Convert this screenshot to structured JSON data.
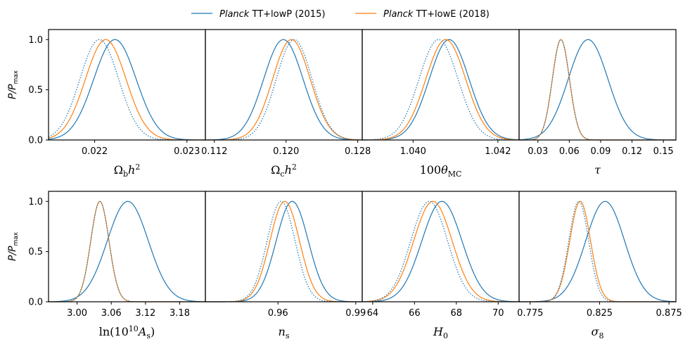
{
  "legend": [
    {
      "italic": "Planck",
      "rest": " TT+lowP (2015)",
      "color": "#1f77b4"
    },
    {
      "italic": "Planck",
      "rest": " TT+lowE (2018)",
      "color": "#ff7f0e"
    }
  ],
  "ylabel": "P/P_max",
  "colors": {
    "s2015": "#1f77b4",
    "s2018": "#ff7f0e",
    "dotted": "#1f77b4",
    "axis": "#000000"
  },
  "chart_data": [
    {
      "type": "line",
      "xlabel": "Ω_b h²",
      "xlim": [
        0.0215,
        0.0232
      ],
      "ylim": [
        0,
        1.1
      ],
      "xticks": [
        0.022,
        0.023
      ],
      "xtick_labels": [
        "0.022",
        "0.023"
      ],
      "yticks": [
        0,
        0.5,
        1.0
      ],
      "ytick_labels": [
        "0.0",
        "0.5",
        "1.0"
      ],
      "series": [
        {
          "name": "Planck TT+lowP (2015)",
          "mean": 0.02222,
          "sigma": 0.00023,
          "style": "solid",
          "color": "#1f77b4"
        },
        {
          "name": "Planck TT+lowE (2018)",
          "mean": 0.02212,
          "sigma": 0.00022,
          "style": "solid",
          "color": "#ff7f0e"
        },
        {
          "mean": 0.02205,
          "sigma": 0.00021,
          "style": "dotted",
          "color": "#1f77b4"
        }
      ]
    },
    {
      "type": "line",
      "xlabel": "Ω_c h²",
      "xlim": [
        0.111,
        0.1285
      ],
      "ylim": [
        0,
        1.1
      ],
      "xticks": [
        0.112,
        0.12,
        0.128
      ],
      "xtick_labels": [
        "0.112",
        "0.120",
        "0.128"
      ],
      "series": [
        {
          "name": "Planck TT+lowP (2015)",
          "mean": 0.1197,
          "sigma": 0.0022,
          "style": "solid",
          "color": "#1f77b4"
        },
        {
          "name": "Planck TT+lowE (2018)",
          "mean": 0.1206,
          "sigma": 0.0021,
          "style": "solid",
          "color": "#ff7f0e"
        },
        {
          "mean": 0.1209,
          "sigma": 0.002,
          "style": "dotted",
          "color": "#1f77b4"
        }
      ]
    },
    {
      "type": "line",
      "xlabel": "100θ_MC",
      "xlim": [
        1.0388,
        1.0425
      ],
      "ylim": [
        0,
        1.1
      ],
      "xticks": [
        1.04,
        1.042
      ],
      "xtick_labels": [
        "1.040",
        "1.042"
      ],
      "series": [
        {
          "name": "Planck TT+lowP (2015)",
          "mean": 1.04085,
          "sigma": 0.00047,
          "style": "solid",
          "color": "#1f77b4"
        },
        {
          "name": "Planck TT+lowE (2018)",
          "mean": 1.04077,
          "sigma": 0.00047,
          "style": "solid",
          "color": "#ff7f0e"
        },
        {
          "mean": 1.0406,
          "sigma": 0.00046,
          "style": "dotted",
          "color": "#1f77b4"
        }
      ]
    },
    {
      "type": "line",
      "xlabel": "τ",
      "xlim": [
        0.012,
        0.162
      ],
      "ylim": [
        0,
        1.1
      ],
      "xticks": [
        0.03,
        0.06,
        0.09,
        0.12,
        0.15
      ],
      "xtick_labels": [
        "0.03",
        "0.06",
        "0.09",
        "0.12",
        "0.15"
      ],
      "series": [
        {
          "name": "Planck TT+lowP (2015)",
          "mean": 0.078,
          "sigma": 0.019,
          "style": "solid",
          "color": "#1f77b4"
        },
        {
          "name": "Planck TT+lowE (2018)",
          "mean": 0.052,
          "sigma": 0.0082,
          "style": "solid",
          "color": "#ff7f0e"
        },
        {
          "mean": 0.052,
          "sigma": 0.0082,
          "style": "dotted",
          "color": "#1f77b4"
        }
      ]
    },
    {
      "type": "line",
      "xlabel": "ln(10¹⁰A_s)",
      "xlim": [
        2.95,
        3.225
      ],
      "ylim": [
        0,
        1.1
      ],
      "xticks": [
        3.0,
        3.06,
        3.12,
        3.18
      ],
      "xtick_labels": [
        "3.00",
        "3.06",
        "3.12",
        "3.18"
      ],
      "series": [
        {
          "name": "Planck TT+lowP (2015)",
          "mean": 3.089,
          "sigma": 0.036,
          "style": "solid",
          "color": "#1f77b4"
        },
        {
          "name": "Planck TT+lowE (2018)",
          "mean": 3.04,
          "sigma": 0.016,
          "style": "solid",
          "color": "#ff7f0e"
        },
        {
          "mean": 3.04,
          "sigma": 0.016,
          "style": "dotted",
          "color": "#1f77b4"
        }
      ]
    },
    {
      "type": "line",
      "xlabel": "n_s",
      "xlim": [
        0.932,
        0.9925
      ],
      "ylim": [
        0,
        1.1
      ],
      "xticks": [
        0.96,
        0.99
      ],
      "xtick_labels": [
        "0.96",
        "0.99"
      ],
      "series": [
        {
          "name": "Planck TT+lowP (2015)",
          "mean": 0.9655,
          "sigma": 0.0062,
          "style": "solid",
          "color": "#1f77b4"
        },
        {
          "name": "Planck TT+lowE (2018)",
          "mean": 0.9626,
          "sigma": 0.0057,
          "style": "solid",
          "color": "#ff7f0e"
        },
        {
          "mean": 0.9612,
          "sigma": 0.0054,
          "style": "dotted",
          "color": "#1f77b4"
        }
      ]
    },
    {
      "type": "line",
      "xlabel": "H_0",
      "xlim": [
        63.5,
        71.0
      ],
      "ylim": [
        0,
        1.1
      ],
      "xticks": [
        64,
        66,
        68,
        70
      ],
      "xtick_labels": [
        "64",
        "66",
        "68",
        "70"
      ],
      "series": [
        {
          "name": "Planck TT+lowP (2015)",
          "mean": 67.31,
          "sigma": 0.96,
          "style": "solid",
          "color": "#1f77b4"
        },
        {
          "name": "Planck TT+lowE (2018)",
          "mean": 66.88,
          "sigma": 0.92,
          "style": "solid",
          "color": "#ff7f0e"
        },
        {
          "mean": 66.7,
          "sigma": 0.88,
          "style": "dotted",
          "color": "#1f77b4"
        }
      ]
    },
    {
      "type": "line",
      "xlabel": "σ_8",
      "xlim": [
        0.767,
        0.88
      ],
      "ylim": [
        0,
        1.1
      ],
      "xticks": [
        0.775,
        0.825,
        0.875
      ],
      "xtick_labels": [
        "0.775",
        "0.825",
        "0.875"
      ],
      "series": [
        {
          "name": "Planck TT+lowP (2015)",
          "mean": 0.829,
          "sigma": 0.014,
          "style": "solid",
          "color": "#1f77b4"
        },
        {
          "name": "Planck TT+lowE (2018)",
          "mean": 0.811,
          "sigma": 0.0075,
          "style": "solid",
          "color": "#ff7f0e"
        },
        {
          "mean": 0.81,
          "sigma": 0.0072,
          "style": "dotted",
          "color": "#1f77b4"
        }
      ]
    }
  ]
}
